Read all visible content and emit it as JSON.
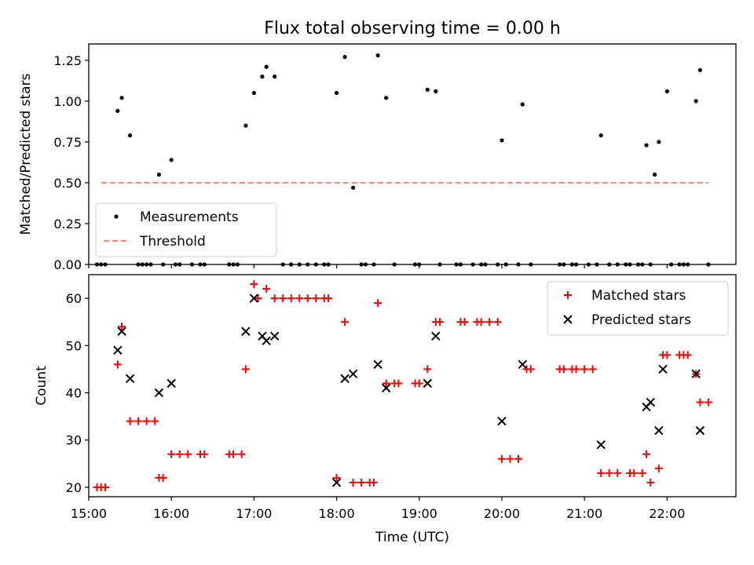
{
  "title": "Flux total observing time = 0.00 h",
  "colors": {
    "measurement": "#000000",
    "threshold": "#ff7f7f",
    "matched": "#ff0000",
    "predicted": "#000000"
  },
  "chart_data": [
    {
      "type": "scatter",
      "title": "Flux total observing time = 0.00 h",
      "ylabel": "Matched/Predicted stars",
      "xlabel": "",
      "xlim": [
        "15:00",
        "22:50"
      ],
      "ylim": [
        0,
        1.35
      ],
      "x_ticks": [
        "15:00",
        "16:00",
        "17:00",
        "18:00",
        "19:00",
        "20:00",
        "21:00",
        "22:00"
      ],
      "y_ticks": [
        "0.00",
        "0.25",
        "0.50",
        "0.75",
        "1.00",
        "1.25"
      ],
      "legend_position": "lower-left",
      "series": [
        {
          "name": "Measurements",
          "marker": "dot",
          "points": [
            [
              "15:06",
              0
            ],
            [
              "15:09",
              0
            ],
            [
              "15:12",
              0
            ],
            [
              "15:21",
              0.94
            ],
            [
              "15:24",
              1.02
            ],
            [
              "15:30",
              0.79
            ],
            [
              "15:36",
              0
            ],
            [
              "15:39",
              0
            ],
            [
              "15:42",
              0
            ],
            [
              "15:45",
              0
            ],
            [
              "15:51",
              0.55
            ],
            [
              "15:54",
              0
            ],
            [
              "16:00",
              0.64
            ],
            [
              "16:03",
              0
            ],
            [
              "16:06",
              0
            ],
            [
              "16:15",
              0
            ],
            [
              "16:21",
              0
            ],
            [
              "16:24",
              0
            ],
            [
              "16:42",
              0
            ],
            [
              "16:45",
              0
            ],
            [
              "16:48",
              0
            ],
            [
              "16:54",
              0.85
            ],
            [
              "17:00",
              1.05
            ],
            [
              "17:06",
              1.15
            ],
            [
              "17:09",
              1.21
            ],
            [
              "17:15",
              1.15
            ],
            [
              "17:21",
              0
            ],
            [
              "17:27",
              0
            ],
            [
              "17:33",
              0
            ],
            [
              "17:39",
              0
            ],
            [
              "17:45",
              0
            ],
            [
              "17:51",
              0
            ],
            [
              "17:54",
              0
            ],
            [
              "18:00",
              1.05
            ],
            [
              "18:06",
              1.27
            ],
            [
              "18:12",
              0.47
            ],
            [
              "18:18",
              0
            ],
            [
              "18:21",
              0
            ],
            [
              "18:27",
              0
            ],
            [
              "18:30",
              1.28
            ],
            [
              "18:36",
              1.02
            ],
            [
              "18:42",
              0
            ],
            [
              "18:57",
              0
            ],
            [
              "19:00",
              0
            ],
            [
              "19:06",
              1.07
            ],
            [
              "19:12",
              1.06
            ],
            [
              "19:15",
              0
            ],
            [
              "19:27",
              0
            ],
            [
              "19:30",
              0
            ],
            [
              "19:39",
              0
            ],
            [
              "19:45",
              0
            ],
            [
              "19:48",
              0
            ],
            [
              "19:57",
              0
            ],
            [
              "20:00",
              0.76
            ],
            [
              "20:03",
              0
            ],
            [
              "20:12",
              0
            ],
            [
              "20:15",
              0.98
            ],
            [
              "20:21",
              0
            ],
            [
              "20:42",
              0
            ],
            [
              "20:45",
              0
            ],
            [
              "20:51",
              0
            ],
            [
              "20:54",
              0
            ],
            [
              "21:03",
              0
            ],
            [
              "21:09",
              0
            ],
            [
              "21:12",
              0.79
            ],
            [
              "21:18",
              0
            ],
            [
              "21:24",
              0
            ],
            [
              "21:30",
              0
            ],
            [
              "21:33",
              0
            ],
            [
              "21:39",
              0
            ],
            [
              "21:42",
              0
            ],
            [
              "21:45",
              0.73
            ],
            [
              "21:48",
              0
            ],
            [
              "21:51",
              0.55
            ],
            [
              "21:54",
              0.75
            ],
            [
              "22:00",
              1.06
            ],
            [
              "22:03",
              0
            ],
            [
              "22:09",
              0
            ],
            [
              "22:12",
              0
            ],
            [
              "22:15",
              0
            ],
            [
              "22:21",
              1.0
            ],
            [
              "22:24",
              1.19
            ],
            [
              "22:30",
              0
            ]
          ]
        },
        {
          "name": "Threshold",
          "line_style": "dashed",
          "points": [
            [
              "15:09",
              0.5
            ],
            [
              "22:30",
              0.5
            ]
          ]
        }
      ]
    },
    {
      "type": "scatter",
      "title": "",
      "ylabel": "Count",
      "xlabel": "Time (UTC)",
      "xlim": [
        "15:00",
        "22:50"
      ],
      "ylim": [
        18,
        65
      ],
      "x_ticks": [
        "15:00",
        "16:00",
        "17:00",
        "18:00",
        "19:00",
        "20:00",
        "21:00",
        "22:00"
      ],
      "y_ticks": [
        "20",
        "30",
        "40",
        "50",
        "60"
      ],
      "legend_position": "upper-right",
      "series": [
        {
          "name": "Matched stars",
          "marker": "plus",
          "points": [
            [
              "15:06",
              20
            ],
            [
              "15:09",
              20
            ],
            [
              "15:12",
              20
            ],
            [
              "15:21",
              46
            ],
            [
              "15:24",
              54
            ],
            [
              "15:30",
              34
            ],
            [
              "15:36",
              34
            ],
            [
              "15:42",
              34
            ],
            [
              "15:48",
              34
            ],
            [
              "15:51",
              22
            ],
            [
              "15:54",
              22
            ],
            [
              "16:00",
              27
            ],
            [
              "16:06",
              27
            ],
            [
              "16:12",
              27
            ],
            [
              "16:21",
              27
            ],
            [
              "16:24",
              27
            ],
            [
              "16:42",
              27
            ],
            [
              "16:45",
              27
            ],
            [
              "16:51",
              27
            ],
            [
              "16:54",
              45
            ],
            [
              "17:00",
              63
            ],
            [
              "17:03",
              60
            ],
            [
              "17:09",
              62
            ],
            [
              "17:15",
              60
            ],
            [
              "17:21",
              60
            ],
            [
              "17:27",
              60
            ],
            [
              "17:33",
              60
            ],
            [
              "17:39",
              60
            ],
            [
              "17:45",
              60
            ],
            [
              "17:51",
              60
            ],
            [
              "17:54",
              60
            ],
            [
              "18:00",
              22
            ],
            [
              "18:06",
              55
            ],
            [
              "18:12",
              21
            ],
            [
              "18:18",
              21
            ],
            [
              "18:24",
              21
            ],
            [
              "18:27",
              21
            ],
            [
              "18:30",
              59
            ],
            [
              "18:36",
              42
            ],
            [
              "18:42",
              42
            ],
            [
              "18:45",
              42
            ],
            [
              "18:57",
              42
            ],
            [
              "19:00",
              42
            ],
            [
              "19:06",
              45
            ],
            [
              "19:12",
              55
            ],
            [
              "19:15",
              55
            ],
            [
              "19:30",
              55
            ],
            [
              "19:33",
              55
            ],
            [
              "19:42",
              55
            ],
            [
              "19:45",
              55
            ],
            [
              "19:51",
              55
            ],
            [
              "19:57",
              55
            ],
            [
              "20:00",
              26
            ],
            [
              "20:06",
              26
            ],
            [
              "20:12",
              26
            ],
            [
              "20:18",
              45
            ],
            [
              "20:21",
              45
            ],
            [
              "20:42",
              45
            ],
            [
              "20:45",
              45
            ],
            [
              "20:51",
              45
            ],
            [
              "20:54",
              45
            ],
            [
              "21:00",
              45
            ],
            [
              "21:06",
              45
            ],
            [
              "21:12",
              23
            ],
            [
              "21:18",
              23
            ],
            [
              "21:24",
              23
            ],
            [
              "21:33",
              23
            ],
            [
              "21:36",
              23
            ],
            [
              "21:42",
              23
            ],
            [
              "21:45",
              27
            ],
            [
              "21:48",
              21
            ],
            [
              "21:54",
              24
            ],
            [
              "21:57",
              48
            ],
            [
              "22:00",
              48
            ],
            [
              "22:09",
              48
            ],
            [
              "22:12",
              48
            ],
            [
              "22:15",
              48
            ],
            [
              "22:21",
              44
            ],
            [
              "22:24",
              38
            ],
            [
              "22:30",
              38
            ]
          ]
        },
        {
          "name": "Predicted stars",
          "marker": "x",
          "points": [
            [
              "15:21",
              49
            ],
            [
              "15:24",
              53
            ],
            [
              "15:30",
              43
            ],
            [
              "15:51",
              40
            ],
            [
              "16:00",
              42
            ],
            [
              "16:54",
              53
            ],
            [
              "17:00",
              60
            ],
            [
              "17:06",
              52
            ],
            [
              "17:09",
              51
            ],
            [
              "17:15",
              52
            ],
            [
              "18:00",
              21
            ],
            [
              "18:06",
              43
            ],
            [
              "18:12",
              44
            ],
            [
              "18:30",
              46
            ],
            [
              "18:36",
              41
            ],
            [
              "19:06",
              42
            ],
            [
              "19:12",
              52
            ],
            [
              "20:00",
              34
            ],
            [
              "20:15",
              46
            ],
            [
              "21:12",
              29
            ],
            [
              "21:45",
              37
            ],
            [
              "21:48",
              38
            ],
            [
              "21:54",
              32
            ],
            [
              "21:57",
              45
            ],
            [
              "22:21",
              44
            ],
            [
              "22:24",
              32
            ]
          ]
        }
      ]
    }
  ]
}
